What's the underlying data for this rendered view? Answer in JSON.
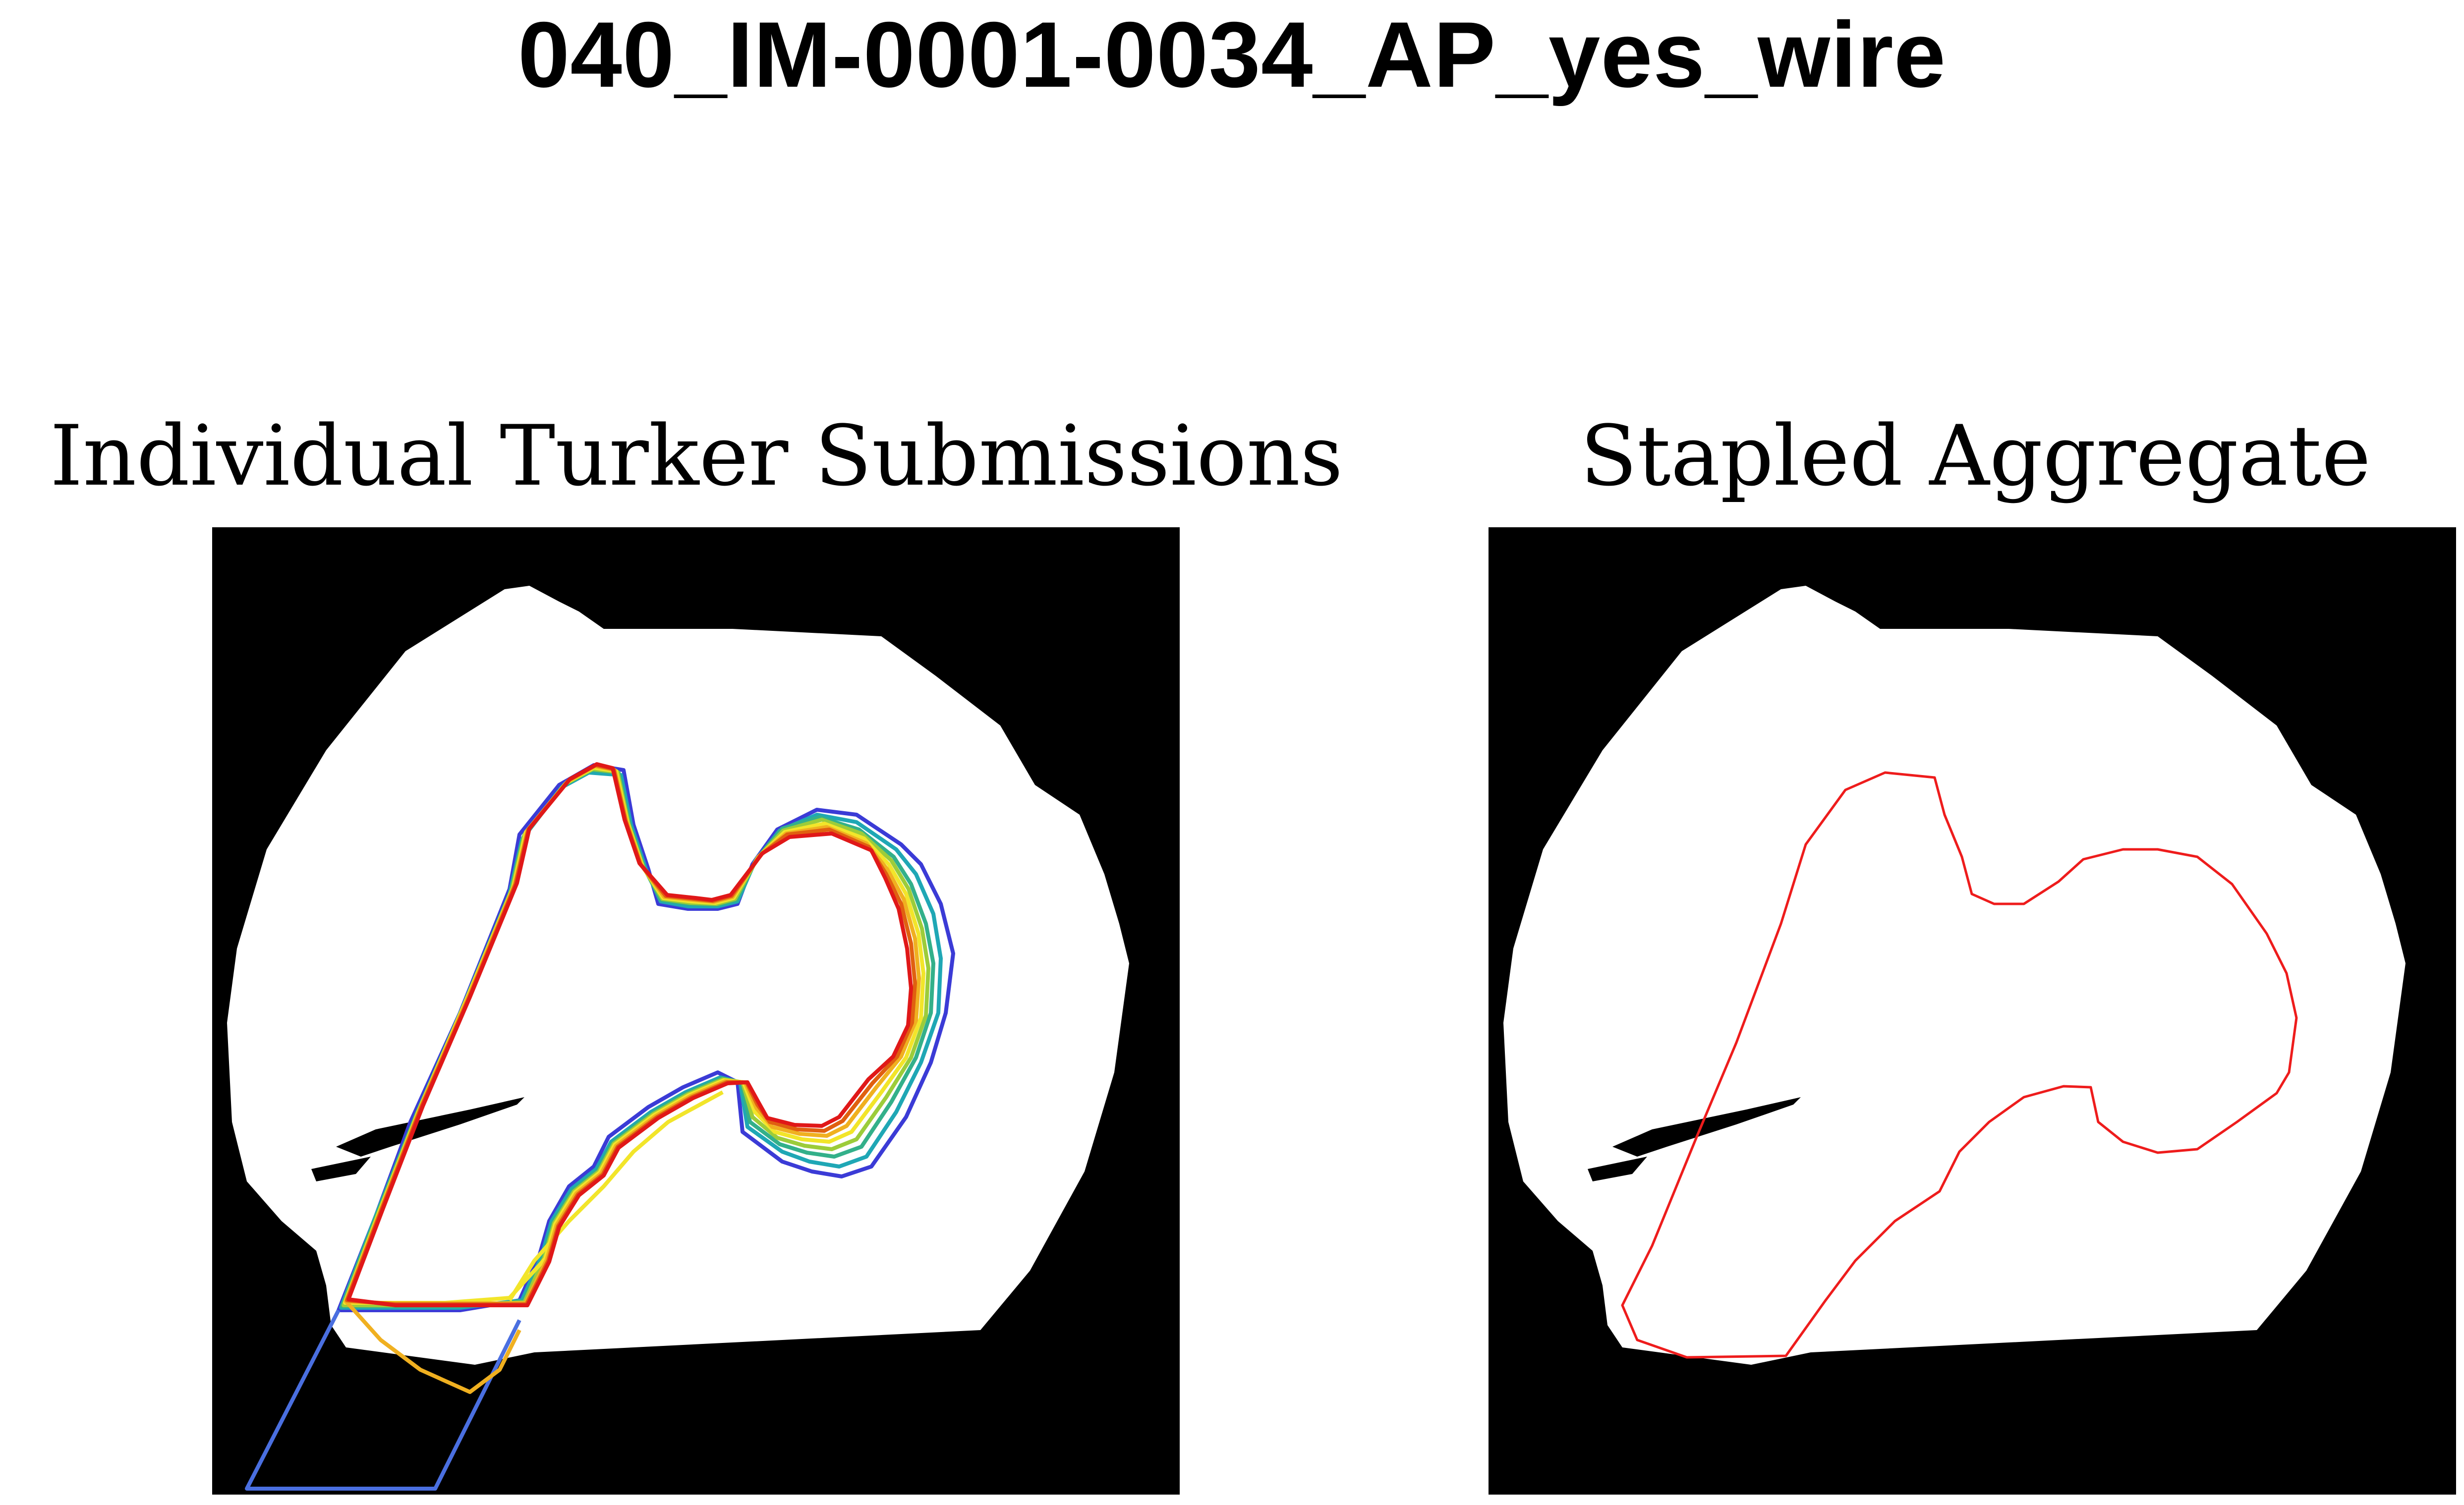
{
  "figure": {
    "title": "040_IM-0001-0034_AP_yes_wire"
  },
  "panels": [
    {
      "title": "Individual Turker Submissions",
      "image": "binary x-ray mask of proximal femur with multiple overlaid outline traces",
      "colors": {
        "background": "#000000",
        "field": "#ffffff",
        "traces": [
          "#3b3bd6",
          "#4a6fe0",
          "#1fa7b5",
          "#33b08a",
          "#9ccc3a",
          "#f2e52a",
          "#f0b020",
          "#e06010",
          "#e01818"
        ]
      }
    },
    {
      "title": "Stapled Aggregate",
      "image": "binary x-ray mask of proximal femur with single aggregated outline",
      "colors": {
        "background": "#000000",
        "field": "#ffffff",
        "aggregate": "#ee1c1c"
      }
    }
  ]
}
